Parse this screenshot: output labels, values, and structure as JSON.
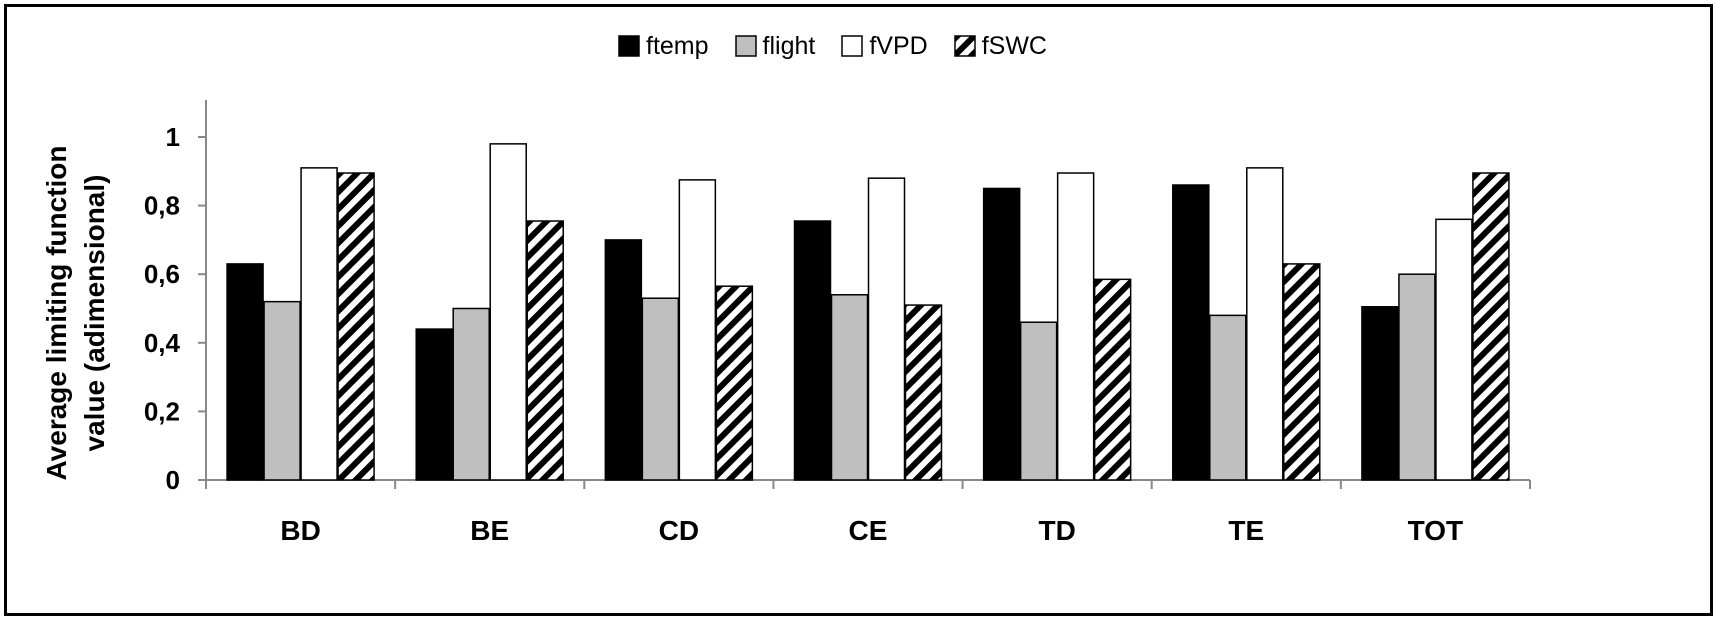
{
  "chart_data": {
    "type": "bar",
    "title": "",
    "xlabel": "",
    "ylabel": "Average limiting function value (adimensional)",
    "ylabel_lines": [
      "Average limiting function",
      "value (adimensional)"
    ],
    "ylim": [
      0,
      1
    ],
    "yticks": [
      0,
      0.2,
      0.4,
      0.6,
      0.8,
      1
    ],
    "ytick_labels": [
      "0",
      "0,2",
      "0,4",
      "0,6",
      "0,8",
      "1"
    ],
    "categories": [
      "BD",
      "BE",
      "CD",
      "CE",
      "TD",
      "TE",
      "TOT"
    ],
    "series": [
      {
        "name": "ftemp",
        "fill": "#000000",
        "pattern": "solid",
        "values": [
          0.63,
          0.44,
          0.7,
          0.755,
          0.85,
          0.86,
          0.505
        ]
      },
      {
        "name": "flight",
        "fill": "#bfbfbf",
        "pattern": "solid",
        "values": [
          0.52,
          0.5,
          0.53,
          0.54,
          0.46,
          0.48,
          0.6
        ]
      },
      {
        "name": "fVPD",
        "fill": "#ffffff",
        "pattern": "solid",
        "values": [
          0.91,
          0.98,
          0.875,
          0.88,
          0.895,
          0.91,
          0.76
        ]
      },
      {
        "name": "fSWC",
        "fill": "#ffffff",
        "pattern": "diagonal-stripes",
        "values": [
          0.895,
          0.755,
          0.565,
          0.51,
          0.585,
          0.63,
          0.895
        ]
      }
    ],
    "legend_position": "top-center",
    "grid": false
  }
}
